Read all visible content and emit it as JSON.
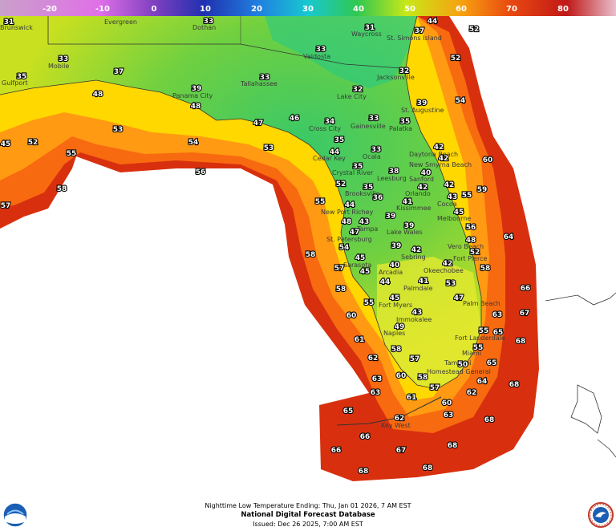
{
  "scale": {
    "labels": [
      "-20",
      "-10",
      "0",
      "10",
      "20",
      "30",
      "40",
      "50",
      "60",
      "70",
      "80"
    ]
  },
  "cities": [
    "Evergreen",
    "Dothan",
    "Waycross",
    "St. Simons Island",
    "Valdosta",
    "Jacksonville",
    "Mobile",
    "Panama City",
    "Tallahassee",
    "Lake City",
    "St. Augustine",
    "Cross City",
    "Gainesville",
    "Palatka",
    "Ocala",
    "Daytona Beach",
    "Cedar Key",
    "Crystal River",
    "New Smyrna Beach",
    "Leesburg",
    "Sanford",
    "Orlando",
    "Brooksville",
    "Cocoa",
    "Kissimmee",
    "New Port Richey",
    "Melbourne",
    "Tampa",
    "Lake Wales",
    "St. Petersburg",
    "Vero Beach",
    "Sebring",
    "Fort Pierce",
    "Sarasota",
    "Okeechobee",
    "Arcadia",
    "Palmdale",
    "Fort Myers",
    "Palm Beach",
    "Immokalee",
    "Naples",
    "Fort Lauderdale",
    "Miami",
    "Tamiami",
    "Homestead General",
    "Key West",
    "Gulfport",
    "Brunswick"
  ],
  "temps": [
    "31",
    "33",
    "44",
    "37",
    "52",
    "31",
    "33",
    "52",
    "33",
    "37",
    "35",
    "32",
    "39",
    "48",
    "33",
    "32",
    "48",
    "54",
    "39",
    "47",
    "46",
    "34",
    "33",
    "35",
    "53",
    "45",
    "52",
    "35",
    "55",
    "54",
    "53",
    "44",
    "33",
    "42",
    "42",
    "60",
    "56",
    "35",
    "38",
    "40",
    "58",
    "52",
    "35",
    "42",
    "42",
    "36",
    "55",
    "43",
    "59",
    "57",
    "55",
    "44",
    "41",
    "45",
    "39",
    "48",
    "43",
    "56",
    "47",
    "39",
    "64",
    "58",
    "54",
    "39",
    "42",
    "48",
    "52",
    "45",
    "57",
    "42",
    "40",
    "58",
    "45",
    "41",
    "53",
    "44",
    "58",
    "66",
    "55",
    "45",
    "47",
    "60",
    "43",
    "49",
    "63",
    "67",
    "61",
    "58",
    "55",
    "65",
    "62",
    "57",
    "68",
    "55",
    "50",
    "65",
    "63",
    "60",
    "58",
    "64",
    "57",
    "68",
    "63",
    "61",
    "62",
    "60",
    "65",
    "62",
    "63",
    "68",
    "66",
    "68",
    "66",
    "67",
    "68",
    "68"
  ],
  "colors": {
    "legend": [
      "#c9a0c9",
      "#b87ad8",
      "#9040c8",
      "#4a2fb0",
      "#1e50d0",
      "#18b0e0",
      "#22c880",
      "#5cc82e",
      "#b8e020",
      "#f0ec00",
      "#f8a010",
      "#f06010",
      "#d83010",
      "#c02010",
      "#e8b8c8"
    ],
    "ocean_inner": "#ffe000",
    "ocean_mid": "#ff8a10",
    "ocean_outer": "#d8300e"
  },
  "icons": [
    "noaa-logo-icon",
    "nws-logo-icon"
  ],
  "footer": {
    "line1": "Nighttime Low Temperature Ending: Thu, Jan 01 2026, 7 AM EST",
    "line2": "National Digital Forecast Database",
    "line3": "Issued: Dec 26 2025, 7:00 AM EST"
  }
}
